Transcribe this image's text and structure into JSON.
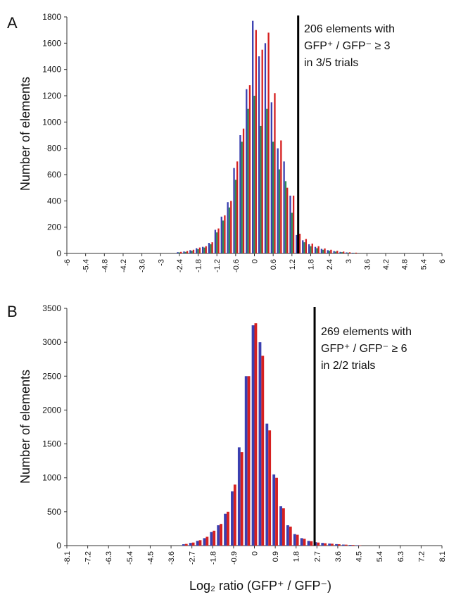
{
  "chart_data": [
    {
      "panel": "A",
      "type": "bar",
      "ylabel": "Number of elements",
      "ylim": [
        0,
        1800
      ],
      "yticks": [
        0,
        200,
        400,
        600,
        800,
        1000,
        1200,
        1400,
        1600,
        1800
      ],
      "xlim": [
        -6,
        6
      ],
      "xtick_labels": [
        "-6",
        "-5.4",
        "-4.8",
        "-4.2",
        "-3.6",
        "-3",
        "-2.4",
        "-1.8",
        "-1.2",
        "-0.6",
        "0",
        "0.6",
        "1.2",
        "1.8",
        "2.4",
        "3",
        "3.6",
        "4.2",
        "4.8",
        "5.4",
        "6"
      ],
      "bin_width": 0.2,
      "threshold_x": 1.4,
      "annotation": [
        "206 elements with",
        "GFP⁺ / GFP⁻ ≥ 3",
        "in 3/5 trials"
      ],
      "series": [
        {
          "name": "",
          "color": "#3a3fb0",
          "x": [
            -2.4,
            -2.2,
            -2.0,
            -1.8,
            -1.6,
            -1.4,
            -1.2,
            -1.0,
            -0.8,
            -0.6,
            -0.4,
            -0.2,
            0.0,
            0.2,
            0.4,
            0.6,
            0.8,
            1.0,
            1.2,
            1.4,
            1.6,
            1.8,
            2.0,
            2.2,
            2.4,
            2.6,
            2.8,
            3.0,
            3.2
          ],
          "values": [
            10,
            15,
            25,
            40,
            50,
            80,
            180,
            280,
            390,
            650,
            900,
            1250,
            1770,
            1500,
            1600,
            1150,
            800,
            700,
            440,
            140,
            100,
            70,
            50,
            35,
            25,
            18,
            12,
            8,
            5
          ]
        },
        {
          "name": "",
          "color": "#2e8b57",
          "x": [
            -2.4,
            -2.2,
            -2.0,
            -1.8,
            -1.6,
            -1.4,
            -1.2,
            -1.0,
            -0.8,
            -0.6,
            -0.4,
            -0.2,
            0.0,
            0.2,
            0.4,
            0.6,
            0.8,
            1.0,
            1.2,
            1.4,
            1.6,
            1.8,
            2.0,
            2.2,
            2.4,
            2.6,
            2.8,
            3.0,
            3.2
          ],
          "values": [
            8,
            12,
            20,
            32,
            45,
            70,
            160,
            250,
            350,
            560,
            850,
            1100,
            1200,
            970,
            1100,
            850,
            640,
            550,
            310,
            110,
            85,
            55,
            40,
            28,
            20,
            14,
            10,
            6,
            4
          ]
        },
        {
          "name": "",
          "color": "#d62020",
          "x": [
            -2.4,
            -2.2,
            -2.0,
            -1.8,
            -1.6,
            -1.4,
            -1.2,
            -1.0,
            -0.8,
            -0.6,
            -0.4,
            -0.2,
            0.0,
            0.2,
            0.4,
            0.6,
            0.8,
            1.0,
            1.2,
            1.4,
            1.6,
            1.8,
            2.0,
            2.2,
            2.4,
            2.6,
            2.8,
            3.0,
            3.2
          ],
          "values": [
            12,
            18,
            28,
            45,
            55,
            85,
            190,
            290,
            400,
            700,
            950,
            1280,
            1700,
            1550,
            1680,
            1220,
            860,
            500,
            440,
            150,
            110,
            75,
            55,
            38,
            28,
            20,
            14,
            9,
            6
          ]
        }
      ]
    },
    {
      "panel": "B",
      "type": "bar",
      "ylabel": "Number of elements",
      "xlabel": "Log₂ ratio (GFP⁺ / GFP⁻)",
      "ylim": [
        0,
        3500
      ],
      "yticks": [
        0,
        500,
        1000,
        1500,
        2000,
        2500,
        3000,
        3500
      ],
      "xlim": [
        -8.1,
        8.1
      ],
      "xtick_labels": [
        "-8.1",
        "-7.2",
        "-6.3",
        "-5.4",
        "-4.5",
        "-3.6",
        "-2.7",
        "-1.8",
        "-0.9",
        "0",
        "0.9",
        "1.8",
        "2.7",
        "3.6",
        "4.5",
        "5.4",
        "6.3",
        "7.2",
        "8.1"
      ],
      "bin_width": 0.3,
      "threshold_x": 2.6,
      "annotation": [
        "269 elements with",
        "GFP⁺ / GFP⁻ ≥ 6",
        "in 2/2 trials"
      ],
      "series": [
        {
          "name": "",
          "color": "#3a3fb0",
          "x": [
            -3.0,
            -2.7,
            -2.4,
            -2.1,
            -1.8,
            -1.5,
            -1.2,
            -0.9,
            -0.6,
            -0.3,
            0.0,
            0.3,
            0.6,
            0.9,
            1.2,
            1.5,
            1.8,
            2.1,
            2.4,
            2.7,
            3.0,
            3.3,
            3.6,
            3.9,
            4.2,
            4.5
          ],
          "values": [
            20,
            40,
            70,
            110,
            200,
            300,
            470,
            800,
            1450,
            2500,
            3250,
            3000,
            1800,
            1050,
            580,
            300,
            170,
            110,
            70,
            50,
            40,
            30,
            22,
            15,
            10,
            6
          ]
        },
        {
          "name": "",
          "color": "#d62020",
          "x": [
            -3.0,
            -2.7,
            -2.4,
            -2.1,
            -1.8,
            -1.5,
            -1.2,
            -0.9,
            -0.6,
            -0.3,
            0.0,
            0.3,
            0.6,
            0.9,
            1.2,
            1.5,
            1.8,
            2.1,
            2.4,
            2.7,
            3.0,
            3.3,
            3.6,
            3.9,
            4.2,
            4.5
          ],
          "values": [
            25,
            45,
            80,
            130,
            220,
            320,
            500,
            900,
            1380,
            2500,
            3280,
            2800,
            1700,
            1000,
            550,
            280,
            160,
            100,
            65,
            45,
            35,
            28,
            20,
            14,
            9,
            5
          ]
        }
      ]
    }
  ]
}
